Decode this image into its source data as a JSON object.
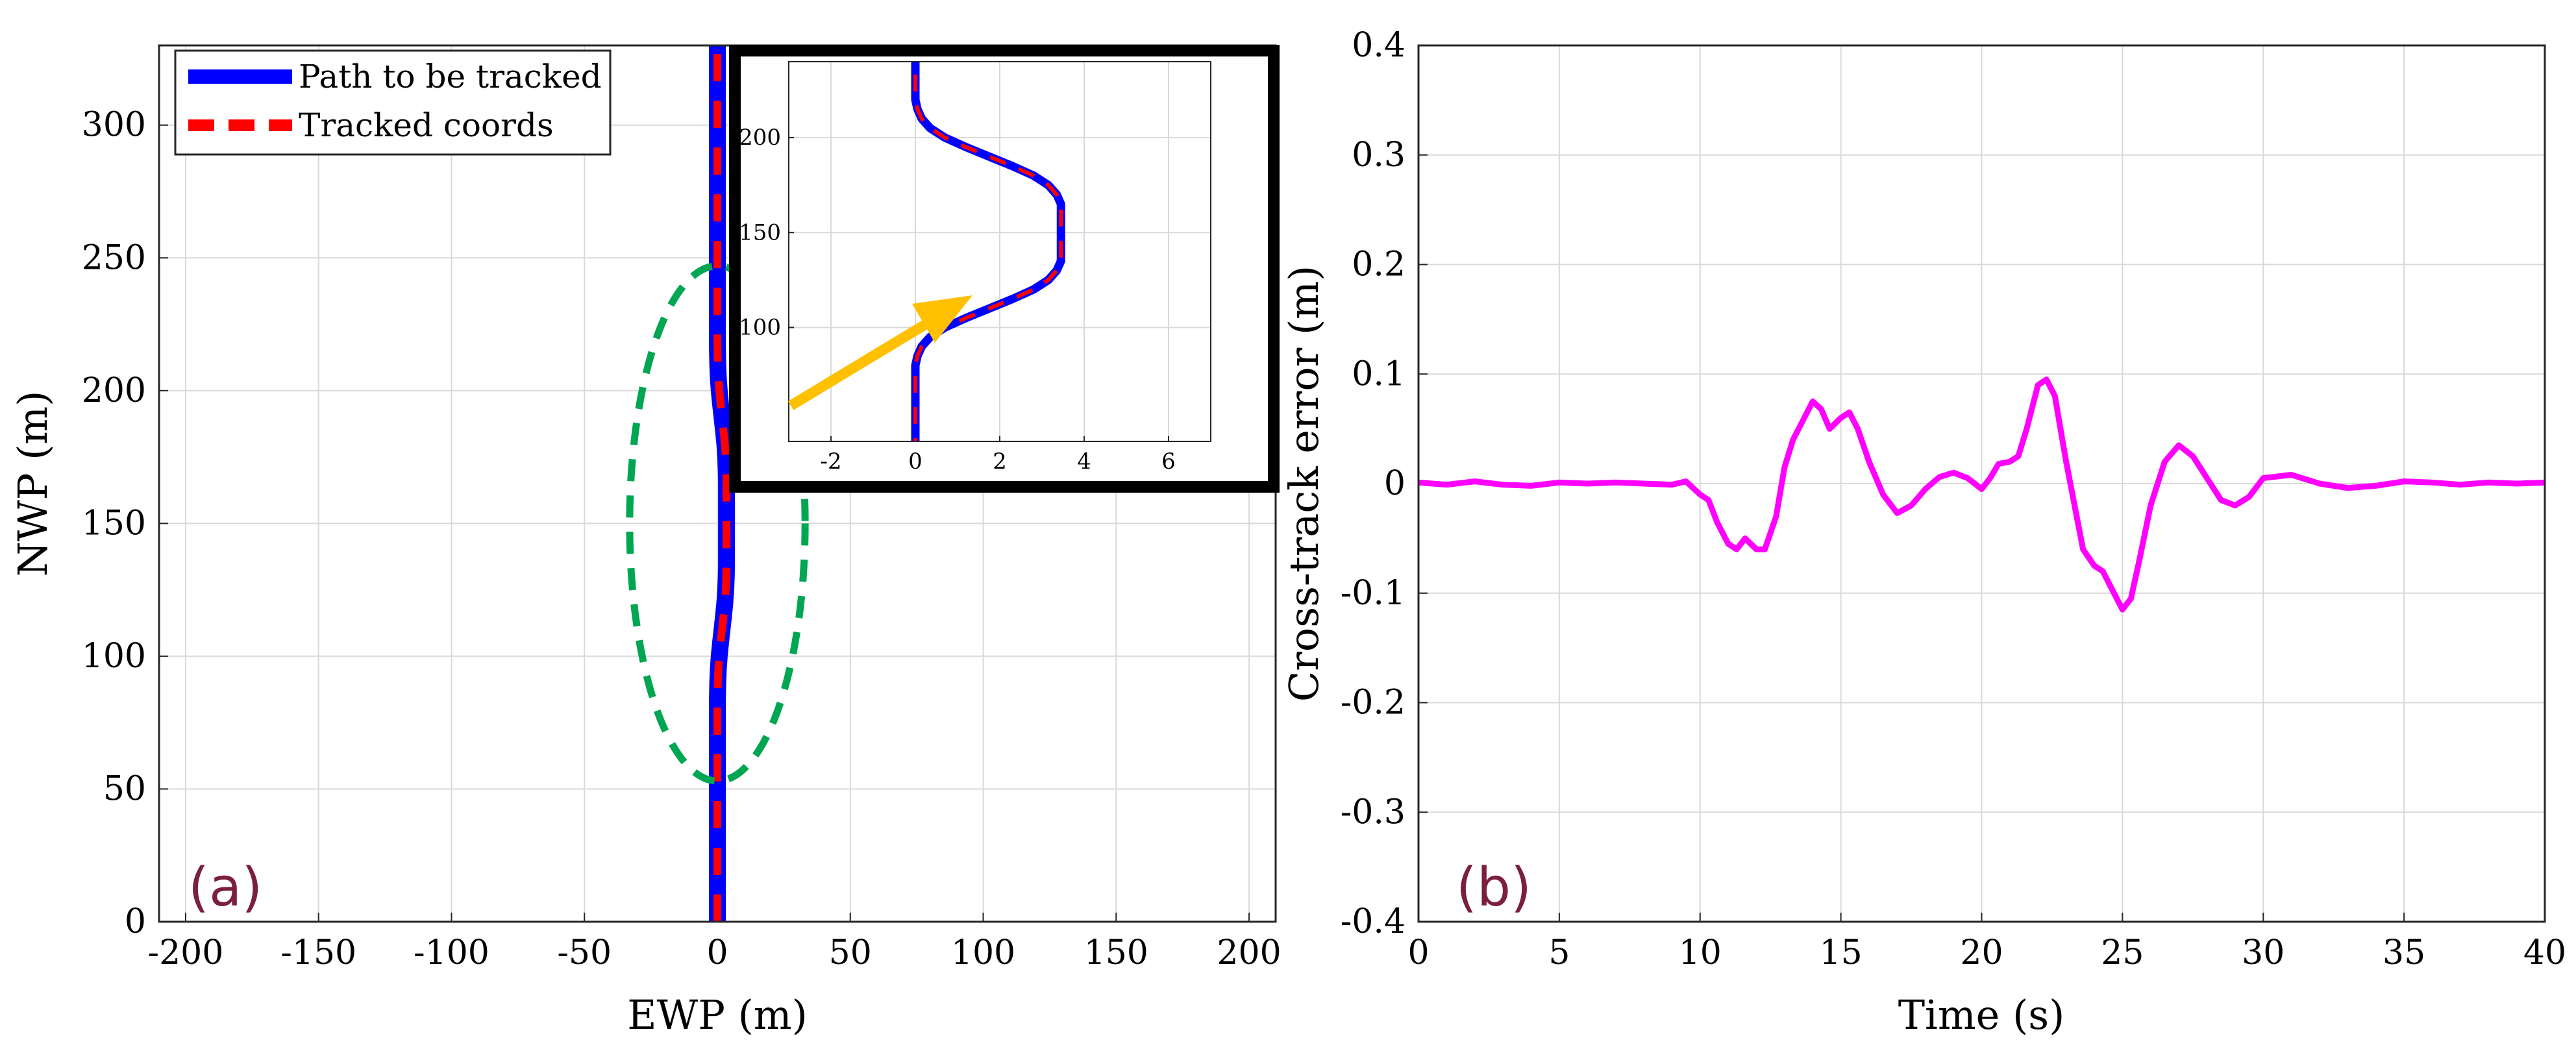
{
  "chart_data": [
    {
      "id": "a",
      "type": "line",
      "panel_label": "(a)",
      "xlabel": "EWP (m)",
      "ylabel": "NWP (m)",
      "xlim": [
        -210,
        210
      ],
      "ylim": [
        0,
        330
      ],
      "xticks": [
        -200,
        -150,
        -100,
        -50,
        0,
        50,
        100,
        150,
        200
      ],
      "yticks": [
        0,
        50,
        100,
        150,
        200,
        250,
        300
      ],
      "grid": true,
      "legend_position": "top-left",
      "series": [
        {
          "name": "Path to be tracked",
          "color": "#0000ff",
          "style": "solid",
          "x": [
            0,
            0,
            0.05,
            0.15,
            0.35,
            0.7,
            1.2,
            1.75,
            2.3,
            2.8,
            3.15,
            3.35,
            3.45,
            3.45,
            3.35,
            3.15,
            2.8,
            2.3,
            1.75,
            1.2,
            0.7,
            0.35,
            0.15,
            0.05,
            0,
            0
          ],
          "y": [
            0,
            80,
            85,
            90,
            95,
            100,
            105,
            110,
            115,
            120,
            125,
            130,
            135,
            165,
            170,
            175,
            180,
            185,
            190,
            195,
            200,
            205,
            210,
            215,
            220,
            330
          ]
        },
        {
          "name": "Tracked coords",
          "color": "#ff0000",
          "style": "dashed",
          "x": [
            0,
            0,
            0.05,
            0.15,
            0.35,
            0.7,
            1.2,
            1.75,
            2.3,
            2.8,
            3.15,
            3.35,
            3.45,
            3.45,
            3.35,
            3.15,
            2.8,
            2.3,
            1.75,
            1.2,
            0.7,
            0.35,
            0.15,
            0.05,
            0,
            0
          ],
          "y": [
            0,
            80,
            85,
            90,
            95,
            100,
            105,
            110,
            115,
            120,
            125,
            130,
            135,
            165,
            170,
            175,
            180,
            185,
            190,
            195,
            200,
            205,
            210,
            215,
            220,
            330
          ]
        }
      ],
      "annotations": [
        {
          "type": "ellipse",
          "color": "#00a651",
          "style": "dashed",
          "center": [
            0,
            150
          ],
          "radius_x": 33,
          "radius_y": 97
        },
        {
          "type": "arrow",
          "color": "#ffc000"
        }
      ],
      "inset": {
        "xlim": [
          -3,
          7
        ],
        "ylim": [
          40,
          240
        ],
        "xticks": [
          -2,
          0,
          2,
          4,
          6
        ],
        "yticks": [
          100,
          150,
          200
        ],
        "grid": true
      }
    },
    {
      "id": "b",
      "type": "line",
      "panel_label": "(b)",
      "xlabel": "Time (s)",
      "ylabel": "Cross-track error (m)",
      "xlim": [
        0,
        40
      ],
      "ylim": [
        -0.4,
        0.4
      ],
      "xticks": [
        0,
        5,
        10,
        15,
        20,
        25,
        30,
        35,
        40
      ],
      "yticks": [
        -0.4,
        -0.3,
        -0.2,
        -0.1,
        0,
        0.1,
        0.2,
        0.3,
        0.4
      ],
      "ytick_labels": [
        "-0.4",
        "-0.3",
        "-0.2",
        "-0.1",
        "0",
        "0.1",
        "0.2",
        "0.3",
        "0.4"
      ],
      "grid": true,
      "series": [
        {
          "name": "Cross-track error",
          "color": "#ff00ff",
          "x": [
            0,
            1,
            2,
            3,
            4,
            5,
            6,
            7,
            8,
            9,
            9.5,
            10,
            10.3,
            10.6,
            11,
            11.3,
            11.6,
            12,
            12.3,
            12.7,
            13,
            13.3,
            13.7,
            14,
            14.3,
            14.6,
            15,
            15.3,
            15.6,
            16,
            16.5,
            17,
            17.5,
            18,
            18.5,
            19,
            19.5,
            20,
            20.3,
            20.6,
            21,
            21.3,
            21.6,
            22,
            22.3,
            22.6,
            23,
            23.3,
            23.6,
            24,
            24.3,
            24.6,
            25,
            25.3,
            25.6,
            26,
            26.5,
            27,
            27.5,
            28,
            28.5,
            29,
            29.5,
            30,
            31,
            32,
            33,
            34,
            35,
            36,
            37,
            38,
            39,
            40
          ],
          "y": [
            0.001,
            -0.001,
            0.002,
            -0.001,
            -0.002,
            0.001,
            0,
            0.001,
            0,
            -0.001,
            0.002,
            -0.01,
            -0.015,
            -0.035,
            -0.055,
            -0.06,
            -0.05,
            -0.06,
            -0.06,
            -0.03,
            0.015,
            0.04,
            0.06,
            0.075,
            0.068,
            0.05,
            0.06,
            0.065,
            0.05,
            0.02,
            -0.01,
            -0.027,
            -0.02,
            -0.005,
            0.006,
            0.01,
            0.005,
            -0.005,
            0.005,
            0.018,
            0.02,
            0.025,
            0.05,
            0.09,
            0.095,
            0.08,
            0.02,
            -0.02,
            -0.06,
            -0.075,
            -0.08,
            -0.095,
            -0.115,
            -0.105,
            -0.07,
            -0.02,
            0.02,
            0.035,
            0.025,
            0.005,
            -0.015,
            -0.02,
            -0.012,
            0.005,
            0.008,
            0,
            -0.004,
            -0.002,
            0.002,
            0.001,
            -0.001,
            0.001,
            0,
            0.001
          ]
        }
      ]
    }
  ],
  "legend": {
    "path_label": "Path to be tracked",
    "tracked_label": "Tracked coords"
  }
}
